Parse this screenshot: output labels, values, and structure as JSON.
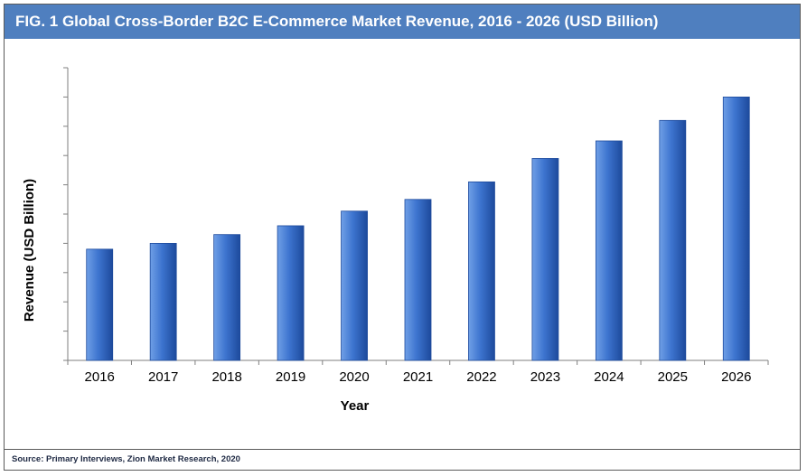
{
  "header": {
    "title": "FIG. 1  Global Cross-Border B2C E-Commerce Market Revenue, 2016 - 2026 (USD Billion)"
  },
  "footer": {
    "source": "Source: Primary Interviews, Zion Market Research, 2020"
  },
  "colors": {
    "title_bar": "#4f7fbf",
    "bar_light": "#6f9fe6",
    "bar_mid": "#3d74cf",
    "bar_dark": "#1d4a9c"
  },
  "chart_data": {
    "type": "bar",
    "title": "FIG. 1  Global Cross-Border B2C E-Commerce Market Revenue, 2016 - 2026 (USD Billion)",
    "xlabel": "Year",
    "ylabel": "Revenue (USD Billion)",
    "categories": [
      "2016",
      "2017",
      "2018",
      "2019",
      "2020",
      "2021",
      "2022",
      "2023",
      "2024",
      "2025",
      "2026"
    ],
    "values": [
      3.8,
      4.0,
      4.3,
      4.6,
      5.1,
      5.5,
      6.1,
      6.9,
      7.5,
      8.2,
      9.0
    ],
    "ylim": [
      0,
      10
    ],
    "y_tick_labels_shown": false,
    "grid": false,
    "legend": "none"
  }
}
